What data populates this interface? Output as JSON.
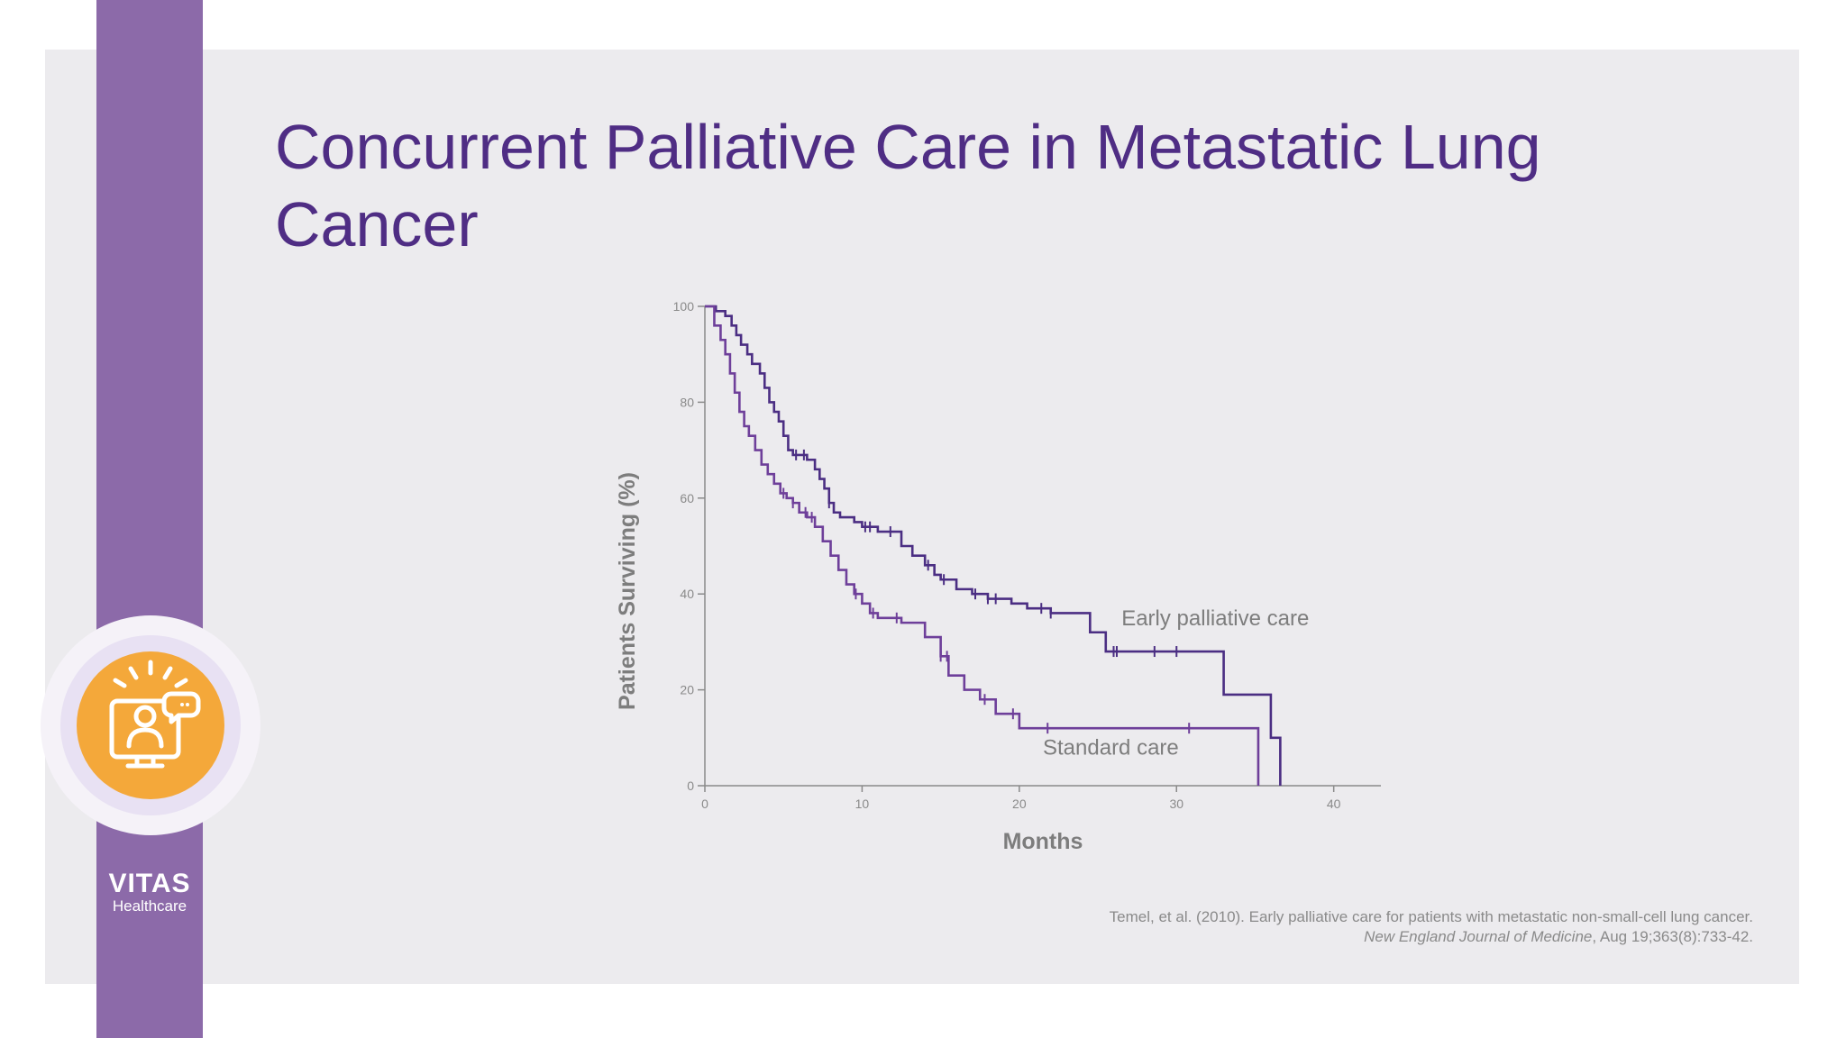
{
  "slide": {
    "title": "Concurrent Palliative Care in Metastatic Lung Cancer",
    "brand": {
      "name": "VITAS",
      "sub": "Healthcare"
    },
    "citation": {
      "line1": "Temel, et al. (2010). Early palliative care for patients with metastatic non-small-cell lung cancer.",
      "journal": "New England Journal of Medicine",
      "line2_rest": ", Aug 19;363(8):733-42."
    },
    "colors": {
      "title": "#4f2d84",
      "band": "#8c6aa9",
      "panel": "#ecebee",
      "icon_orange": "#f4a83a"
    },
    "icon": "patient-telehealth-monitor-icon"
  },
  "chart_data": {
    "type": "line",
    "title": "",
    "xlabel": "Months",
    "ylabel": "Patients Surviving (%)",
    "xlim": [
      0,
      43
    ],
    "ylim": [
      0,
      100
    ],
    "xticks": [
      0,
      10,
      20,
      30,
      40
    ],
    "yticks": [
      0,
      20,
      40,
      60,
      80,
      100
    ],
    "grid": false,
    "legend": "inline labels",
    "series": [
      {
        "name": "Early palliative care",
        "color": "#4b2e83",
        "step": true,
        "x": [
          0,
          0.7,
          1.3,
          1.7,
          2.0,
          2.3,
          2.7,
          3.0,
          3.5,
          3.8,
          4.1,
          4.4,
          4.7,
          5.0,
          5.3,
          5.6,
          6.0,
          6.5,
          7.0,
          7.3,
          7.6,
          7.9,
          8.2,
          8.6,
          9.0,
          9.5,
          10.0,
          11.0,
          12.5,
          13.2,
          14.0,
          14.6,
          15.0,
          16.0,
          17.0,
          18.0,
          18.5,
          19.5,
          20.5,
          22.0,
          24.5,
          25.5,
          26.5,
          28.0,
          30.0,
          31.5,
          33.0,
          35.0,
          36.0,
          36.6
        ],
        "y": [
          100,
          99,
          98,
          96,
          94,
          92,
          90,
          88,
          86,
          83,
          80,
          78,
          76,
          73,
          70,
          69,
          69,
          68,
          66,
          64,
          62,
          59,
          57,
          56,
          56,
          55,
          54,
          53,
          50,
          48,
          46,
          44,
          43,
          41,
          40,
          39,
          39,
          38,
          37,
          36,
          32,
          28,
          28,
          28,
          28,
          28,
          19,
          19,
          10,
          0
        ],
        "censor_x": [
          5.8,
          6.3,
          7.9,
          10.2,
          10.5,
          11.8,
          14.2,
          15.2,
          17.2,
          18.0,
          18.5,
          21.4,
          22.0,
          26.0,
          26.2,
          28.6,
          30.0
        ]
      },
      {
        "name": "Standard care",
        "color": "#6e3f9a",
        "step": true,
        "x": [
          0,
          0.6,
          1.0,
          1.3,
          1.6,
          1.9,
          2.2,
          2.5,
          2.8,
          3.2,
          3.6,
          4.0,
          4.4,
          4.8,
          5.2,
          5.6,
          6.0,
          6.5,
          7.0,
          7.5,
          8.0,
          8.5,
          9.0,
          9.5,
          10.0,
          10.5,
          11.0,
          12.5,
          14.0,
          15.0,
          15.5,
          16.5,
          17.5,
          18.5,
          20.0,
          22.5,
          25.0,
          30.0,
          34.5,
          35.2
        ],
        "y": [
          100,
          96,
          93,
          90,
          86,
          82,
          78,
          75,
          73,
          70,
          67,
          65,
          63,
          61,
          60,
          59,
          57,
          56,
          54,
          51,
          48,
          45,
          42,
          40,
          38,
          36,
          35,
          34,
          31,
          27,
          23,
          20,
          18,
          15,
          12,
          12,
          12,
          12,
          12,
          0
        ],
        "censor_x": [
          5.0,
          5.6,
          6.4,
          6.8,
          9.6,
          10.7,
          12.2,
          15.0,
          15.4,
          17.8,
          19.6,
          21.8,
          30.8
        ]
      }
    ]
  }
}
